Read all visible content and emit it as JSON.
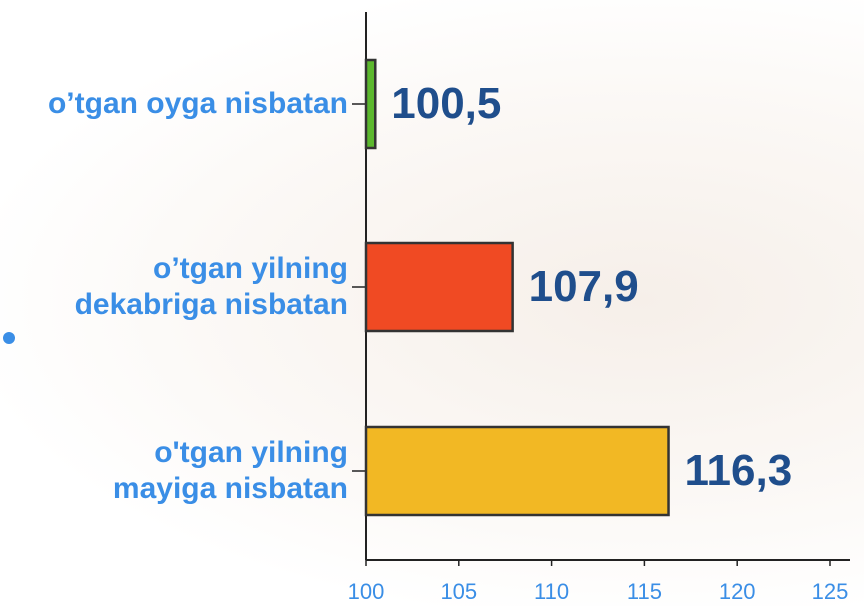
{
  "chart_data": {
    "type": "bar",
    "orientation": "horizontal",
    "categories": [
      "o’tgan oyga nisbatan",
      "o’tgan yilning\ndekabriga nisbatan",
      "o'tgan yilning\nmayiga nisbatan"
    ],
    "values": [
      100.5,
      107.9,
      116.3
    ],
    "value_labels": [
      "100,5",
      "107,9",
      "116,3"
    ],
    "colors": [
      "#5cb82e",
      "#f04a23",
      "#f2b824"
    ],
    "xlim": [
      100,
      125
    ],
    "xticks": [
      100,
      105,
      110,
      115,
      120,
      125
    ]
  }
}
